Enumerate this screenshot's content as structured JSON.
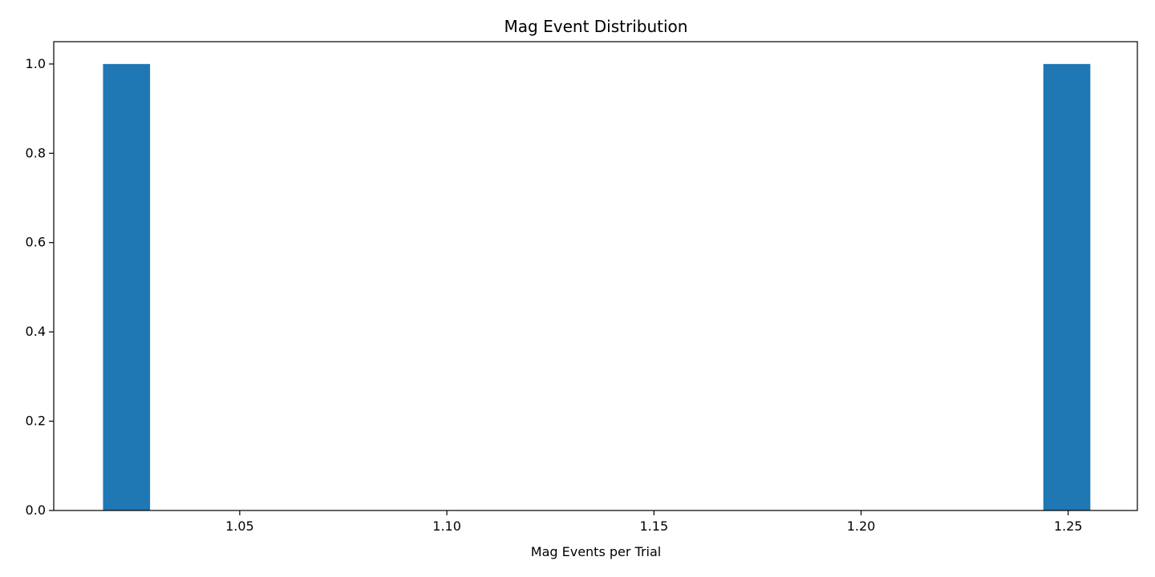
{
  "chart_data": {
    "type": "bar",
    "title": "Mag Event Distribution",
    "xlabel": "Mag Events per Trial",
    "ylabel": "",
    "xlim": [
      1.0051,
      1.2667
    ],
    "ylim": [
      0,
      1.05
    ],
    "grid": false,
    "x_ticks": [
      1.05,
      1.1,
      1.15,
      1.2,
      1.25
    ],
    "x_tick_labels": [
      "1.05",
      "1.10",
      "1.15",
      "1.20",
      "1.25"
    ],
    "y_ticks": [
      0.0,
      0.2,
      0.4,
      0.6,
      0.8,
      1.0
    ],
    "y_tick_labels": [
      "0.0",
      "0.2",
      "0.4",
      "0.6",
      "0.8",
      "1.0"
    ],
    "bin_width": 0.01135,
    "bars": [
      {
        "x_start": 1.017,
        "count": 1
      },
      {
        "x_start": 1.244,
        "count": 1
      }
    ],
    "colors": {
      "bar": "#1f77b4"
    }
  }
}
